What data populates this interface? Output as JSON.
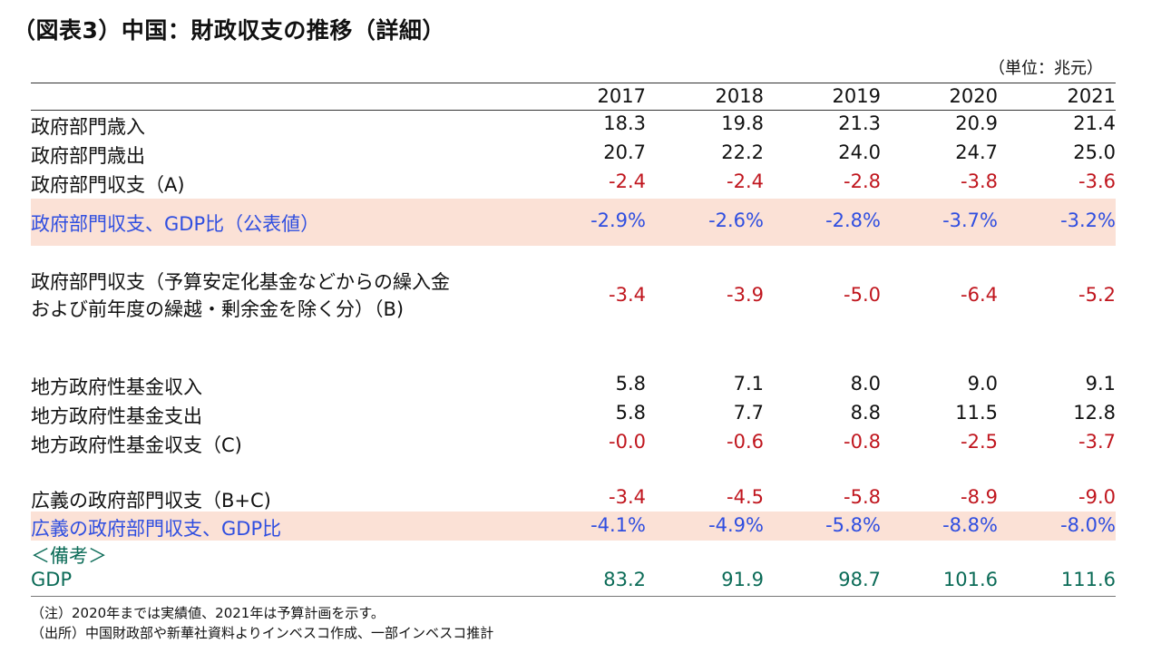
{
  "title": "（図表3）中国：財政収支の推移（詳細）",
  "unit": "（単位：兆元）",
  "years": [
    "2017",
    "2018",
    "2019",
    "2020",
    "2021"
  ],
  "rows": {
    "revenue": {
      "label": "政府部門歳入",
      "values": [
        "18.3",
        "19.8",
        "21.3",
        "20.9",
        "21.4"
      ]
    },
    "expenditure": {
      "label": "政府部門歳出",
      "values": [
        "20.7",
        "22.2",
        "24.0",
        "24.7",
        "25.0"
      ]
    },
    "balance_a": {
      "label": "政府部門収支（A)",
      "values": [
        "-2.4",
        "-2.4",
        "-2.8",
        "-3.8",
        "-3.6"
      ]
    },
    "balance_gdp": {
      "label": "政府部門収支、GDP比（公表値）",
      "values": [
        "-2.9%",
        "-2.6%",
        "-2.8%",
        "-3.7%",
        "-3.2%"
      ]
    },
    "balance_b": {
      "label_line1": "政府部門収支（予算安定化基金などからの繰入金",
      "label_line2": "および前年度の繰越・剰余金を除く分）（B)",
      "values": [
        "-3.4",
        "-3.9",
        "-5.0",
        "-6.4",
        "-5.2"
      ]
    },
    "local_revenue": {
      "label": "地方政府性基金収入",
      "values": [
        "5.8",
        "7.1",
        "8.0",
        "9.0",
        "9.1"
      ]
    },
    "local_expenditure": {
      "label": "地方政府性基金支出",
      "values": [
        "5.8",
        "7.7",
        "8.8",
        "11.5",
        "12.8"
      ]
    },
    "local_balance_c": {
      "label": "地方政府性基金収支（C)",
      "values": [
        "-0.0",
        "-0.6",
        "-0.8",
        "-2.5",
        "-3.7"
      ]
    },
    "broad_balance": {
      "label": "広義の政府部門収支（B+C)",
      "values": [
        "-3.4",
        "-4.5",
        "-5.8",
        "-8.9",
        "-9.0"
      ]
    },
    "broad_balance_gdp": {
      "label": "広義の政府部門収支、GDP比",
      "values": [
        "-4.1%",
        "-4.9%",
        "-5.8%",
        "-8.8%",
        "-8.0%"
      ]
    },
    "memo": {
      "label": "＜備考＞"
    },
    "gdp": {
      "label": "GDP",
      "values": [
        "83.2",
        "91.9",
        "98.7",
        "101.6",
        "111.6"
      ]
    }
  },
  "notes": {
    "note1": "（注）2020年までは実績値、2021年は予算計画を示す。",
    "note2": "（出所）中国財政部や新華社資料よりインベスコ作成、一部インベスコ推計"
  },
  "colors": {
    "negative": "#c0161e",
    "highlight_text": "#2f4ee0",
    "gdp": "#0b6b57",
    "band": "#fbe1d6"
  }
}
